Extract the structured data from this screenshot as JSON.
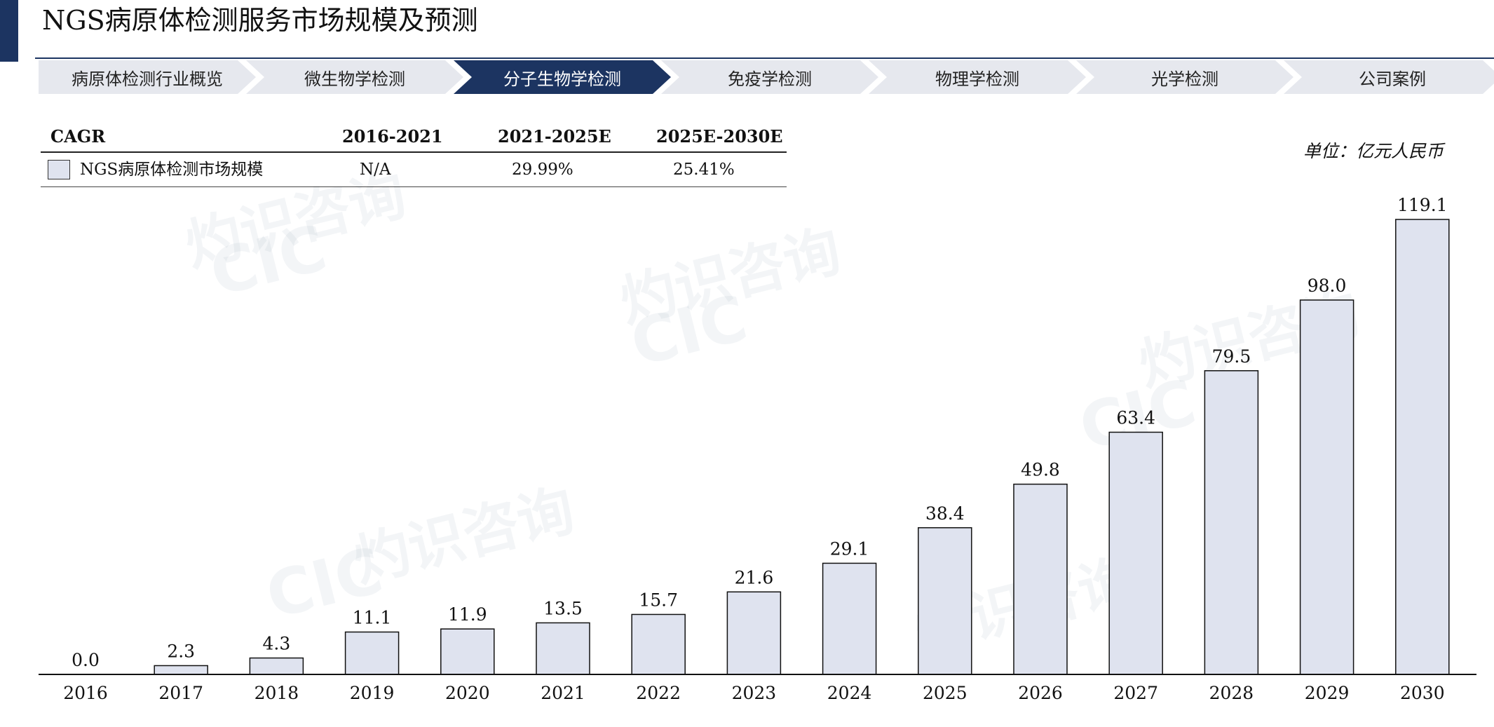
{
  "header": {
    "title": "NGS病原体检测服务市场规模及预测"
  },
  "nav": {
    "items": [
      {
        "label": "病原体检测行业概览",
        "active": false
      },
      {
        "label": "微生物学检测",
        "active": false
      },
      {
        "label": "分子生物学检测",
        "active": true
      },
      {
        "label": "免疫学检测",
        "active": false
      },
      {
        "label": "物理学检测",
        "active": false
      },
      {
        "label": "光学检测",
        "active": false
      },
      {
        "label": "公司案例",
        "active": false
      }
    ]
  },
  "cagr_table": {
    "headers": [
      "CAGR",
      "2016-2021",
      "2021-2025E",
      "2025E-2030E"
    ],
    "row": {
      "label": "NGS病原体检测市场规模",
      "values": [
        "N/A",
        "29.99%",
        "25.41%"
      ]
    }
  },
  "unit": "单位：亿元人民币",
  "watermark": {
    "cn": "灼识咨询",
    "logo": "CIC",
    "en": "China Insights Consultancy"
  },
  "colors": {
    "accent": "#1c3461",
    "bar_fill": "#dfe3ef",
    "bar_stroke": "#111111",
    "nav_inactive": "#e6e8ee"
  },
  "chart_data": {
    "type": "bar",
    "categories": [
      "2016",
      "2017",
      "2018",
      "2019",
      "2020",
      "2021",
      "2022",
      "2023",
      "2024",
      "2025",
      "2026",
      "2027",
      "2028",
      "2029",
      "2030"
    ],
    "values": [
      0.0,
      2.3,
      4.3,
      11.1,
      11.9,
      13.5,
      15.7,
      21.6,
      29.1,
      38.4,
      49.8,
      63.4,
      79.5,
      98.0,
      119.1
    ],
    "value_labels": [
      "0.0",
      "2.3",
      "4.3",
      "11.1",
      "11.9",
      "13.5",
      "15.7",
      "21.6",
      "29.1",
      "38.4",
      "49.8",
      "63.4",
      "79.5",
      "98.0",
      "119.1"
    ],
    "ylim": [
      0,
      119.1
    ],
    "grid": false,
    "legend": "top-left"
  }
}
